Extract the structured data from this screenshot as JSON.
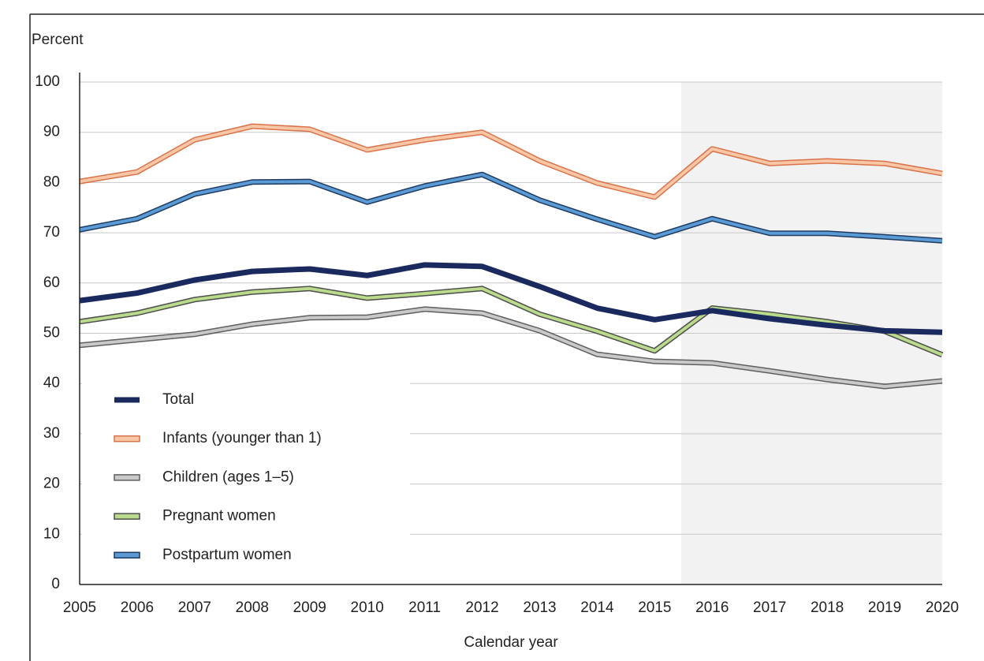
{
  "chart_data": {
    "type": "line",
    "y_label": "Percent",
    "x_label": "Calendar year",
    "x": [
      2005,
      2006,
      2007,
      2008,
      2009,
      2010,
      2011,
      2012,
      2013,
      2014,
      2015,
      2016,
      2017,
      2018,
      2019,
      2020
    ],
    "xlim": [
      2005,
      2020
    ],
    "xticks": [
      2005,
      2006,
      2007,
      2008,
      2009,
      2010,
      2011,
      2012,
      2013,
      2014,
      2015,
      2016,
      2017,
      2018,
      2019,
      2020
    ],
    "ylim": [
      0,
      100
    ],
    "yticks": [
      0,
      10,
      20,
      30,
      40,
      50,
      60,
      70,
      80,
      90,
      100
    ],
    "grid": true,
    "legend": "lower-left",
    "series": [
      {
        "name": "Total",
        "color": "#1b2a5e",
        "values": [
          56.5,
          58,
          60.6,
          62.3,
          62.8,
          61.5,
          63.6,
          63.3,
          59.3,
          55,
          52.7,
          54.5,
          52.9,
          51.6,
          50.5,
          50.2
        ]
      },
      {
        "name": "Infants (younger than 1)",
        "color": "#f9c6a6",
        "edge": "#d9734a",
        "values": [
          80.2,
          82.1,
          88.5,
          91.2,
          90.6,
          86.5,
          88.5,
          90,
          84.3,
          79.9,
          77.1,
          86.7,
          83.8,
          84.3,
          83.8,
          81.8
        ]
      },
      {
        "name": "Children (ages 1–5)",
        "color": "#c9c9c9",
        "edge": "#5f5f5f",
        "values": [
          47.6,
          48.7,
          49.8,
          51.8,
          53.1,
          53.2,
          54.8,
          54,
          50.5,
          45.8,
          44.4,
          44.1,
          42.5,
          40.8,
          39.4,
          40.5
        ]
      },
      {
        "name": "Pregnant women",
        "color": "#bada8c",
        "edge": "#4d4d4d",
        "values": [
          52.3,
          54,
          56.7,
          58.2,
          58.9,
          57,
          57.9,
          58.9,
          53.8,
          50.4,
          46.5,
          55,
          53.8,
          52.3,
          50.4,
          45.7
        ]
      },
      {
        "name": "Postpartum women",
        "color": "#5b9bd5",
        "edge": "#1f3a60",
        "values": [
          70.6,
          72.8,
          77.7,
          80.1,
          80.2,
          76.1,
          79.3,
          81.6,
          76.5,
          72.7,
          69.2,
          72.8,
          69.9,
          69.9,
          69.2,
          68.4
        ]
      }
    ]
  }
}
